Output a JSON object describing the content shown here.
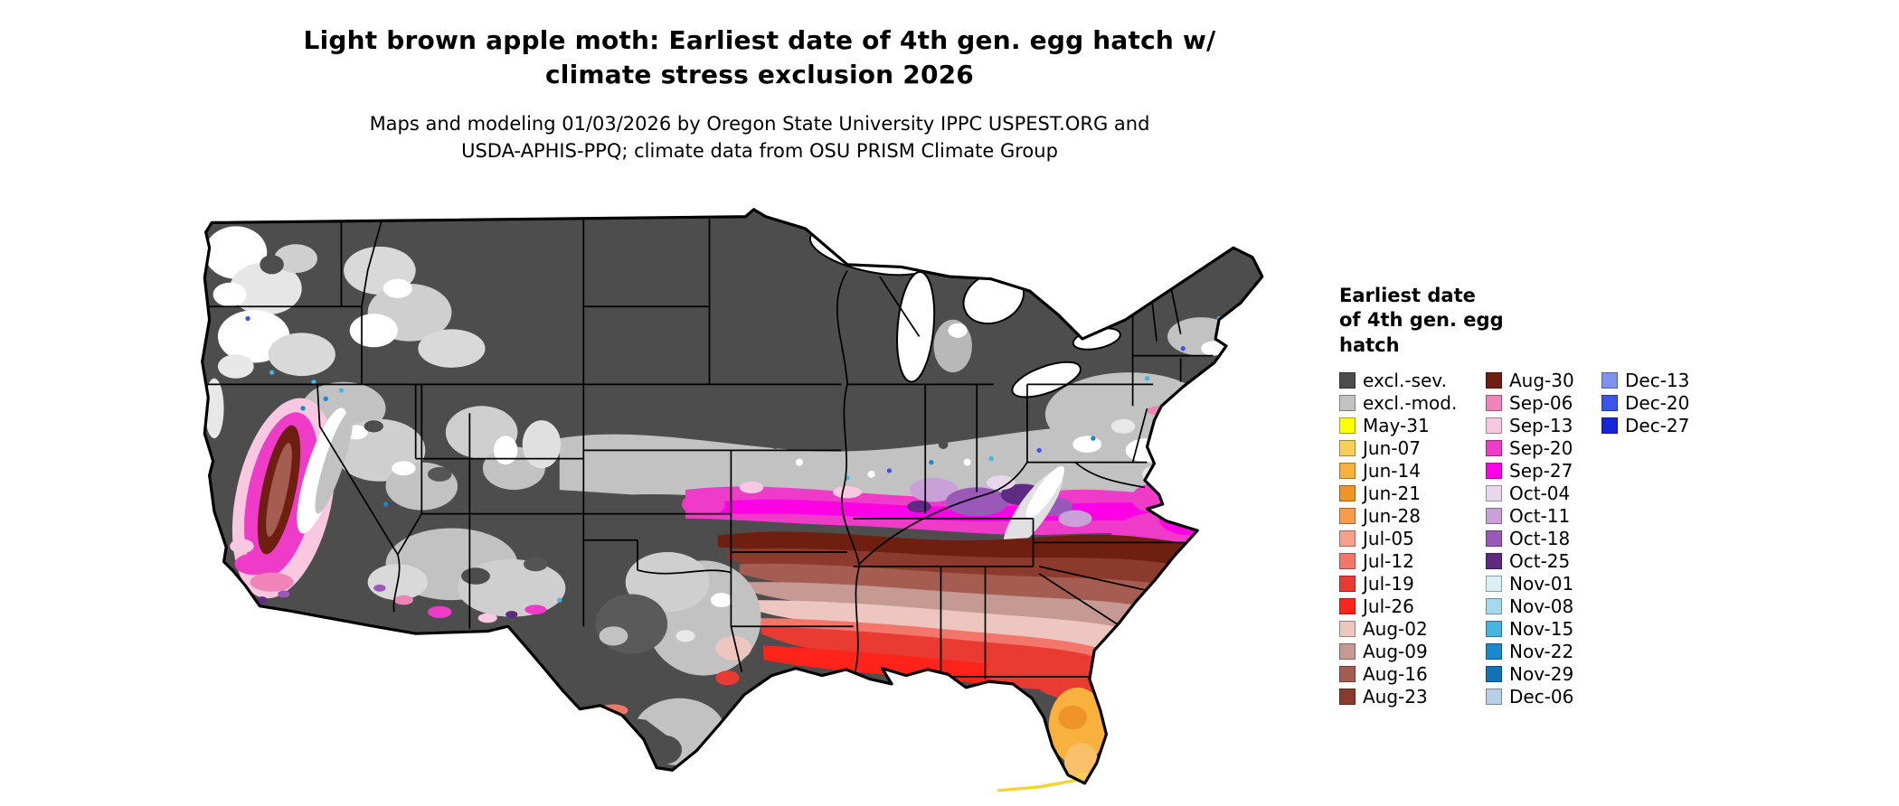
{
  "title": {
    "text": "Light brown apple moth: Earliest date of 4th gen. egg hatch w/\nclimate stress exclusion 2026"
  },
  "subtitle": {
    "text": "Maps and modeling 01/03/2026 by Oregon State University IPPC USPEST.ORG and\nUSDA-APHIS-PPQ; climate data from OSU PRISM Climate Group"
  },
  "legend": {
    "title": "Earliest date\nof 4th gen. egg\nhatch",
    "columns": [
      [
        {
          "label": "excl.-sev.",
          "color": "#4d4d4d"
        },
        {
          "label": "excl.-mod.",
          "color": "#c2c2c2"
        },
        {
          "label": "May-31",
          "color": "#ffff00"
        },
        {
          "label": "Jun-07",
          "color": "#f9d057"
        },
        {
          "label": "Jun-14",
          "color": "#f8b13c"
        },
        {
          "label": "Jun-21",
          "color": "#ee9428"
        },
        {
          "label": "Jun-28",
          "color": "#fa9a4b"
        },
        {
          "label": "Jul-05",
          "color": "#f4a08a"
        },
        {
          "label": "Jul-12",
          "color": "#f3766b"
        },
        {
          "label": "Jul-19",
          "color": "#ea3b32"
        },
        {
          "label": "Jul-26",
          "color": "#ff2419"
        },
        {
          "label": "Aug-02",
          "color": "#eec6c0"
        },
        {
          "label": "Aug-09",
          "color": "#c59a93"
        },
        {
          "label": "Aug-16",
          "color": "#a55c51"
        },
        {
          "label": "Aug-23",
          "color": "#8c3a2e"
        }
      ],
      [
        {
          "label": "Aug-30",
          "color": "#6f1f10"
        },
        {
          "label": "Sep-06",
          "color": "#ee84b8"
        },
        {
          "label": "Sep-13",
          "color": "#f8c7e0"
        },
        {
          "label": "Sep-20",
          "color": "#ee3cc8"
        },
        {
          "label": "Sep-27",
          "color": "#ff00e6"
        },
        {
          "label": "Oct-04",
          "color": "#e9d7ee"
        },
        {
          "label": "Oct-11",
          "color": "#c9a0d8"
        },
        {
          "label": "Oct-18",
          "color": "#9a58b8"
        },
        {
          "label": "Oct-25",
          "color": "#5e2b82"
        },
        {
          "label": "Nov-01",
          "color": "#d8f0f6"
        },
        {
          "label": "Nov-08",
          "color": "#a7d9ee"
        },
        {
          "label": "Nov-15",
          "color": "#47b4e2"
        },
        {
          "label": "Nov-22",
          "color": "#1a88ca"
        },
        {
          "label": "Nov-29",
          "color": "#1273b4"
        },
        {
          "label": "Dec-06",
          "color": "#b9cfe6"
        }
      ],
      [
        {
          "label": "Dec-13",
          "color": "#7e93ef"
        },
        {
          "label": "Dec-20",
          "color": "#3a55e8"
        },
        {
          "label": "Dec-27",
          "color": "#1526d8"
        }
      ]
    ]
  }
}
